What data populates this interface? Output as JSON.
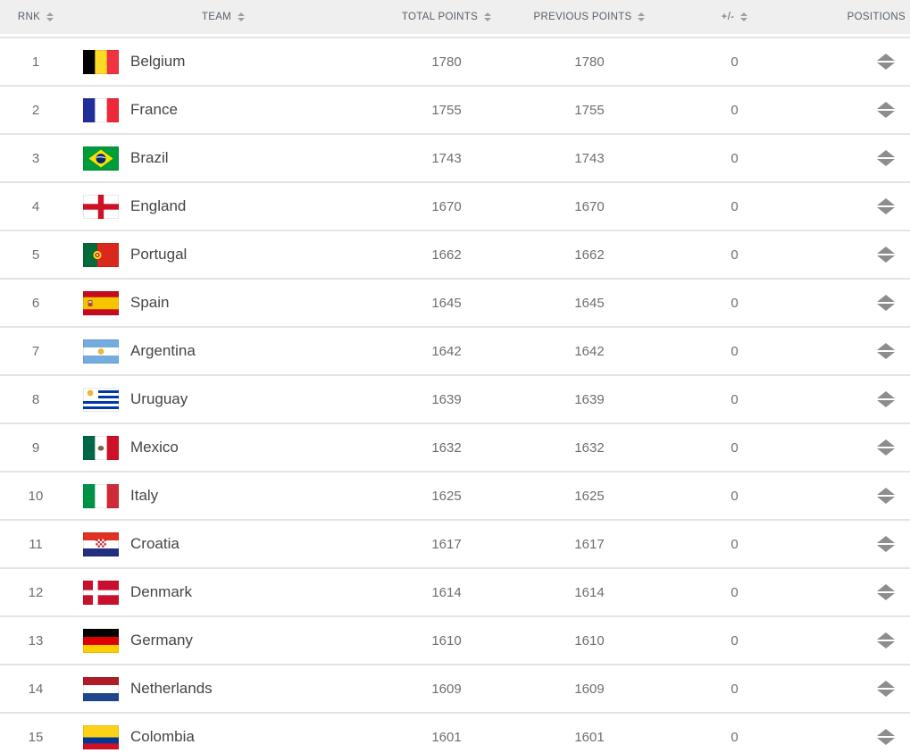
{
  "colors": {
    "header_bg": "#efefef",
    "header_text": "#56606a",
    "sort_icon": "#97a1ab",
    "row_border": "#e4e4e4",
    "row_bg": "#ffffff",
    "rank_text": "#6e6e6e",
    "team_text": "#454545",
    "points_text": "#6e6e6e",
    "icon_gray": "#8d8d8d"
  },
  "table": {
    "columns": [
      {
        "key": "rnk",
        "label": "RNK",
        "sortable": true
      },
      {
        "key": "team",
        "label": "TEAM",
        "sortable": true
      },
      {
        "key": "total_points",
        "label": "TOTAL POINTS",
        "sortable": true
      },
      {
        "key": "previous_points",
        "label": "PREVIOUS POINTS",
        "sortable": true
      },
      {
        "key": "plus_minus",
        "label": "+/-",
        "sortable": true
      },
      {
        "key": "positions",
        "label": "POSITIONS",
        "sortable": false
      }
    ],
    "rows": [
      {
        "rnk": 1,
        "team": "Belgium",
        "total_points": 1780,
        "previous_points": 1780,
        "plus_minus": 0,
        "position_change": "none",
        "flag": {
          "type": "vstripes",
          "colors": [
            "#000000",
            "#fdda24",
            "#ef3340"
          ]
        }
      },
      {
        "rnk": 2,
        "team": "France",
        "total_points": 1755,
        "previous_points": 1755,
        "plus_minus": 0,
        "position_change": "none",
        "flag": {
          "type": "vstripes",
          "colors": [
            "#1f2f9a",
            "#ffffff",
            "#ed2939"
          ]
        }
      },
      {
        "rnk": 3,
        "team": "Brazil",
        "total_points": 1743,
        "previous_points": 1743,
        "plus_minus": 0,
        "position_change": "none",
        "flag": {
          "type": "hstripes",
          "colors": [
            "#009b3a"
          ],
          "heights": [
            1
          ],
          "emblem": {
            "kind": "brazil",
            "diamond": "#fedf00",
            "circle": "#002776"
          }
        }
      },
      {
        "rnk": 4,
        "team": "England",
        "total_points": 1670,
        "previous_points": 1670,
        "plus_minus": 0,
        "position_change": "none",
        "flag": {
          "type": "cross",
          "bg": "#ffffff",
          "cross": "#ce1124"
        }
      },
      {
        "rnk": 5,
        "team": "Portugal",
        "total_points": 1662,
        "previous_points": 1662,
        "plus_minus": 0,
        "position_change": "none",
        "flag": {
          "type": "vstripes",
          "colors": [
            "#046a38",
            "#da291c"
          ],
          "widths": [
            0.4,
            0.6
          ],
          "emblem": {
            "kind": "portugal",
            "ring": "#f7d917",
            "center": "#da291c"
          }
        }
      },
      {
        "rnk": 6,
        "team": "Spain",
        "total_points": 1645,
        "previous_points": 1645,
        "plus_minus": 0,
        "position_change": "none",
        "flag": {
          "type": "hstripes",
          "colors": [
            "#c60b1e",
            "#f6c500",
            "#c60b1e"
          ],
          "heights": [
            0.25,
            0.5,
            0.25
          ],
          "emblem": {
            "kind": "spain",
            "color": "#a94438"
          }
        }
      },
      {
        "rnk": 7,
        "team": "Argentina",
        "total_points": 1642,
        "previous_points": 1642,
        "plus_minus": 0,
        "position_change": "none",
        "flag": {
          "type": "hstripes",
          "colors": [
            "#74acdf",
            "#ffffff",
            "#74acdf"
          ],
          "emblem": {
            "kind": "sun",
            "color": "#f0b53c"
          }
        }
      },
      {
        "rnk": 8,
        "team": "Uruguay",
        "total_points": 1639,
        "previous_points": 1639,
        "plus_minus": 0,
        "position_change": "none",
        "flag": {
          "type": "hstripes",
          "colors": [
            "#ffffff",
            "#0038a8",
            "#ffffff",
            "#0038a8",
            "#ffffff",
            "#0038a8",
            "#ffffff",
            "#0038a8",
            "#ffffff"
          ],
          "emblem": {
            "kind": "uruguay",
            "sun": "#f0b53c"
          }
        }
      },
      {
        "rnk": 9,
        "team": "Mexico",
        "total_points": 1632,
        "previous_points": 1632,
        "plus_minus": 0,
        "position_change": "none",
        "flag": {
          "type": "vstripes",
          "colors": [
            "#006847",
            "#ffffff",
            "#ce1126"
          ],
          "emblem": {
            "kind": "eagle",
            "color": "#7b6440"
          }
        }
      },
      {
        "rnk": 10,
        "team": "Italy",
        "total_points": 1625,
        "previous_points": 1625,
        "plus_minus": 0,
        "position_change": "none",
        "flag": {
          "type": "vstripes",
          "colors": [
            "#009246",
            "#ffffff",
            "#ce2b37"
          ]
        }
      },
      {
        "rnk": 11,
        "team": "Croatia",
        "total_points": 1617,
        "previous_points": 1617,
        "plus_minus": 0,
        "position_change": "none",
        "flag": {
          "type": "hstripes",
          "colors": [
            "#e03122",
            "#ffffff",
            "#222f7d"
          ],
          "emblem": {
            "kind": "checker",
            "c1": "#d01c28",
            "c2": "#ffffff"
          }
        }
      },
      {
        "rnk": 12,
        "team": "Denmark",
        "total_points": 1614,
        "previous_points": 1614,
        "plus_minus": 0,
        "position_change": "none",
        "flag": {
          "type": "nordic",
          "bg": "#c8102e",
          "cross": "#ffffff"
        }
      },
      {
        "rnk": 13,
        "team": "Germany",
        "total_points": 1610,
        "previous_points": 1610,
        "plus_minus": 0,
        "position_change": "none",
        "flag": {
          "type": "hstripes",
          "colors": [
            "#000000",
            "#dd0000",
            "#ffce00"
          ]
        }
      },
      {
        "rnk": 14,
        "team": "Netherlands",
        "total_points": 1609,
        "previous_points": 1609,
        "plus_minus": 0,
        "position_change": "none",
        "flag": {
          "type": "hstripes",
          "colors": [
            "#ae1c28",
            "#ffffff",
            "#21468b"
          ]
        }
      },
      {
        "rnk": 15,
        "team": "Colombia",
        "total_points": 1601,
        "previous_points": 1601,
        "plus_minus": 0,
        "position_change": "none",
        "flag": {
          "type": "hstripes",
          "colors": [
            "#fcd116",
            "#003893",
            "#ce1126"
          ],
          "heights": [
            0.5,
            0.25,
            0.25
          ]
        }
      }
    ]
  }
}
